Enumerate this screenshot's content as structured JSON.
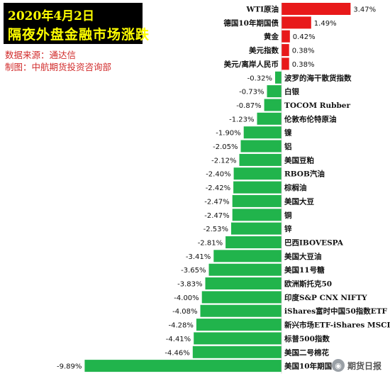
{
  "header": {
    "title_line1": "2020年4月2日",
    "title_line2": "隔夜外盘金融市场涨跌",
    "source": "数据来源：通达信",
    "maker": "制图：中航期货投资咨询部"
  },
  "watermark": {
    "text": "期货日报",
    "icon": "wechat-icon"
  },
  "colors": {
    "positive": "#e8191a",
    "negative": "#21b44c",
    "title_bg": "#000000",
    "title_text": "#ffff00",
    "info_text": "#d12a2a"
  },
  "chart_data": {
    "type": "bar",
    "orientation": "horizontal",
    "categories": [
      "WTI原油",
      "德国10年期国债",
      "黄金",
      "美元指数",
      "美元/离岸人民币",
      "波罗的海干散货指数",
      "白银",
      "TOCOM Rubber",
      "伦敦布伦特原油",
      "镍",
      "铝",
      "美国豆粕",
      "RBOB汽油",
      "棕榈油",
      "美国大豆",
      "铜",
      "锌",
      "巴西IBOVESPA",
      "美国大豆油",
      "美国11号糖",
      "欧洲斯托克50",
      "印度S&P CNX NIFTY",
      "iShares富时中国50指数ETF",
      "新兴市场ETF-iShares MSCI",
      "标普500指数",
      "美国二号棉花",
      "美国10年期国债"
    ],
    "values": [
      3.47,
      1.49,
      0.42,
      0.38,
      0.38,
      -0.32,
      -0.73,
      -0.87,
      -1.23,
      -1.9,
      -2.05,
      -2.12,
      -2.4,
      -2.42,
      -2.47,
      -2.47,
      -2.53,
      -2.81,
      -3.41,
      -3.65,
      -3.83,
      -4.0,
      -4.08,
      -4.28,
      -4.41,
      -4.46,
      -9.89
    ],
    "value_labels": [
      "3.47%",
      "1.49%",
      "0.42%",
      "0.38%",
      "0.38%",
      "-0.32%",
      "-0.73%",
      "-0.87%",
      "-1.23%",
      "-1.90%",
      "-2.05%",
      "-2.12%",
      "-2.40%",
      "-2.42%",
      "-2.47%",
      "-2.47%",
      "-2.53%",
      "-2.81%",
      "-3.41%",
      "-3.65%",
      "-3.83%",
      "-4.00%",
      "-4.08%",
      "-4.28%",
      "-4.41%",
      "-4.46%",
      "-9.89%"
    ],
    "unit": "%",
    "xlim": [
      -9.89,
      3.47
    ],
    "grid": false,
    "legend": false
  }
}
